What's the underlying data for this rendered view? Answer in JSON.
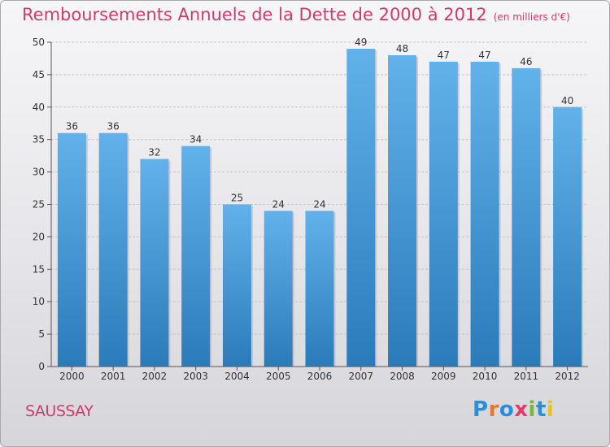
{
  "header": {
    "title": "Remboursements Annuels de la Dette de 2000 à 2012",
    "unit": "(en milliers d'€)"
  },
  "footer": {
    "place_name": "SAUSSAY",
    "brand_logo_text": "Proxiti"
  },
  "colors": {
    "title": "#d23a6e",
    "bar_top": "#62b1ea",
    "bar_bottom": "#2b7bbb",
    "logo_letters": [
      "#2a8fd8",
      "#e8762b",
      "#2a8fd8",
      "#e83a6b",
      "#7cb82f",
      "#2a8fd8",
      "#e8c02b"
    ]
  },
  "chart_data": {
    "type": "bar",
    "categories": [
      "2000",
      "2001",
      "2002",
      "2003",
      "2004",
      "2005",
      "2006",
      "2007",
      "2008",
      "2009",
      "2010",
      "2011",
      "2012"
    ],
    "values": [
      36,
      36,
      32,
      34,
      25,
      24,
      24,
      49,
      48,
      47,
      47,
      46,
      40
    ],
    "title": "Remboursements Annuels de la Dette de 2000 à 2012",
    "xlabel": "",
    "ylabel": "",
    "ylim": [
      0,
      50
    ],
    "yticks": [
      0,
      5,
      10,
      15,
      20,
      25,
      30,
      35,
      40,
      45,
      50
    ],
    "grid": true,
    "data_labels": true,
    "legend": "none"
  }
}
